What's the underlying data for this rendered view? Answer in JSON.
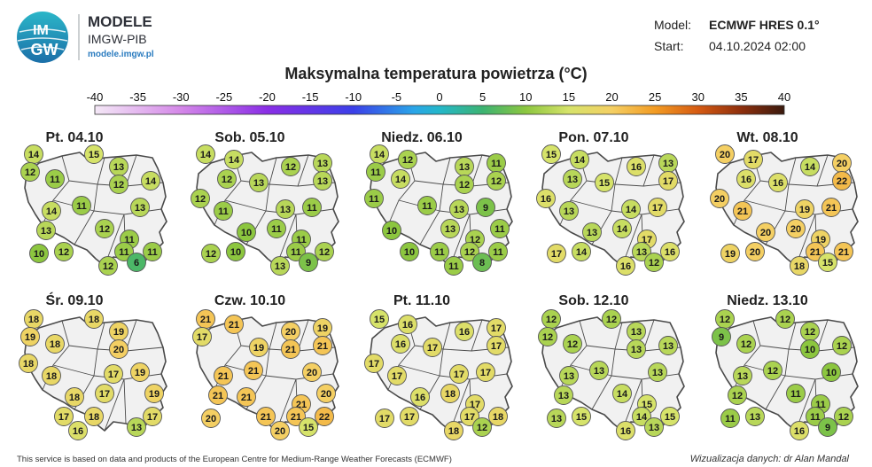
{
  "header": {
    "logo_word_1": "IM",
    "logo_word_2": "GW",
    "title": "MODELE",
    "subtitle": "IMGW-PIB",
    "url": "modele.imgw.pl",
    "model_label": "Model:",
    "model_value": "ECMWF HRES 0.1°",
    "start_label": "Start:",
    "start_value": "04.10.2024 02:00"
  },
  "title": "Maksymalna temperatura powietrza (°C)",
  "colorbar": {
    "ticks": [
      "-40",
      "-35",
      "-30",
      "-25",
      "-20",
      "-15",
      "-10",
      "-5",
      "0",
      "5",
      "10",
      "15",
      "20",
      "25",
      "30",
      "35",
      "40"
    ],
    "min": -40,
    "max": 40,
    "stops": [
      {
        "v": -40,
        "c": "#f4e8f6"
      },
      {
        "v": -30,
        "c": "#d487e8"
      },
      {
        "v": -20,
        "c": "#8a2ee6"
      },
      {
        "v": -10,
        "c": "#3b3fe8"
      },
      {
        "v": -3,
        "c": "#2aa5e8"
      },
      {
        "v": 0,
        "c": "#24b7c9"
      },
      {
        "v": 5,
        "c": "#3cb372"
      },
      {
        "v": 10,
        "c": "#8cc63f"
      },
      {
        "v": 15,
        "c": "#d6e36a"
      },
      {
        "v": 20,
        "c": "#f4cf63"
      },
      {
        "v": 25,
        "c": "#f29b23"
      },
      {
        "v": 30,
        "c": "#d55a12"
      },
      {
        "v": 35,
        "c": "#8e2f0d"
      },
      {
        "v": 40,
        "c": "#3a1a0e"
      }
    ]
  },
  "maps": [
    {
      "title": "Pt. 04.10",
      "values": [
        14,
        15,
        13,
        12,
        11,
        12,
        14,
        14,
        11,
        13,
        13,
        12,
        11,
        10,
        12,
        11,
        11,
        12,
        6
      ]
    },
    {
      "title": "Sob. 05.10",
      "values": [
        14,
        14,
        12,
        13,
        12,
        13,
        13,
        12,
        11,
        13,
        11,
        10,
        11,
        11,
        12,
        10,
        11,
        12,
        13,
        9
      ]
    },
    {
      "title": "Niedz. 06.10",
      "values": [
        14,
        12,
        13,
        11,
        11,
        14,
        12,
        12,
        11,
        11,
        13,
        9,
        10,
        13,
        12,
        11,
        10,
        11,
        12,
        11,
        11,
        8
      ]
    },
    {
      "title": "Pon. 07.10",
      "values": [
        15,
        14,
        16,
        13,
        13,
        15,
        17,
        16,
        13,
        14,
        17,
        13,
        14,
        17,
        17,
        14,
        13,
        16,
        16,
        12
      ]
    },
    {
      "title": "Wt. 08.10",
      "values": [
        20,
        17,
        14,
        20,
        16,
        16,
        22,
        20,
        21,
        19,
        21,
        20,
        20,
        19,
        19,
        20,
        21,
        21,
        18,
        15
      ]
    },
    {
      "title": "Śr. 09.10",
      "values": [
        18,
        18,
        19,
        19,
        18,
        20,
        18,
        18,
        17,
        19,
        18,
        17,
        19,
        17,
        18,
        17,
        16,
        13
      ]
    },
    {
      "title": "Czw. 10.10",
      "values": [
        21,
        21,
        20,
        19,
        17,
        19,
        21,
        21,
        21,
        21,
        20,
        21,
        21,
        21,
        20,
        20,
        21,
        21,
        22,
        20,
        15
      ]
    },
    {
      "title": "Pt. 11.10",
      "values": [
        15,
        16,
        16,
        17,
        16,
        17,
        17,
        17,
        17,
        17,
        17,
        16,
        18,
        17,
        17,
        17,
        17,
        18,
        18,
        12
      ]
    },
    {
      "title": "Sob. 12.10",
      "values": [
        12,
        12,
        13,
        12,
        12,
        13,
        13,
        13,
        13,
        13,
        13,
        14,
        15,
        13,
        15,
        14,
        15,
        16,
        13
      ]
    },
    {
      "title": "Niedz. 13.10",
      "values": [
        12,
        12,
        12,
        9,
        12,
        10,
        12,
        13,
        12,
        10,
        12,
        11,
        11,
        11,
        13,
        11,
        12,
        16,
        9
      ]
    }
  ],
  "footer": {
    "left": "This service is based on data and products of the European Centre for Medium-Range Weather Forecasts (ECMWF)",
    "right": "Wizualizacja danych: dr Alan Mandal"
  }
}
